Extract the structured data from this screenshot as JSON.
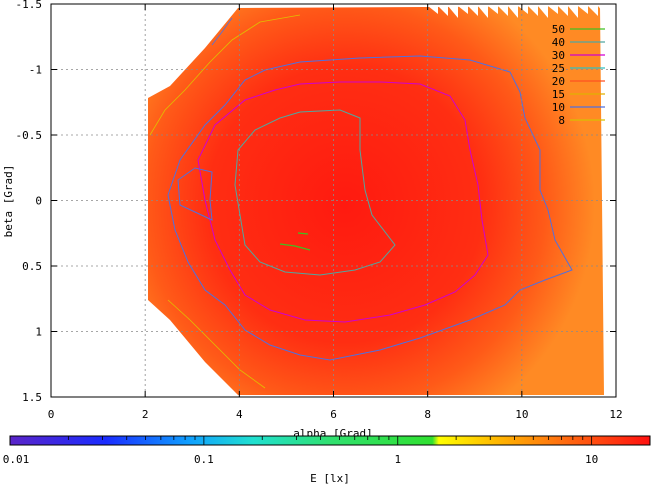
{
  "chart_data": {
    "type": "heatmap",
    "xlabel": "alpha [Grad]",
    "ylabel": "beta [Grad]",
    "xlim": [
      0,
      12
    ],
    "ylim": [
      -1.5,
      1.5
    ],
    "y_reversed": true,
    "x_ticks": [
      "0",
      "2",
      "4",
      "6",
      "8",
      "10",
      "12"
    ],
    "y_ticks": [
      "-1.5",
      "-1",
      "-0.5",
      "0",
      "0.5",
      "1",
      "1.5"
    ],
    "grid": true,
    "contour_legend": {
      "placement": "top-right",
      "levels": [
        {
          "label": "50",
          "color": "#40c020"
        },
        {
          "label": "40",
          "color": "#50a8a0"
        },
        {
          "label": "30",
          "color": "#d000d0"
        },
        {
          "label": "25",
          "color": "#30c0c0"
        },
        {
          "label": "20",
          "color": "#ff5020"
        },
        {
          "label": "15",
          "color": "#e0b000"
        },
        {
          "label": "10",
          "color": "#5070e0"
        },
        {
          "label": "8",
          "color": "#d8c000"
        }
      ]
    },
    "colorbar": {
      "label": "E [lx]",
      "scale": "log",
      "range": [
        0.01,
        20
      ],
      "ticks": [
        "0.01",
        "0.1",
        "1",
        "10"
      ]
    }
  }
}
